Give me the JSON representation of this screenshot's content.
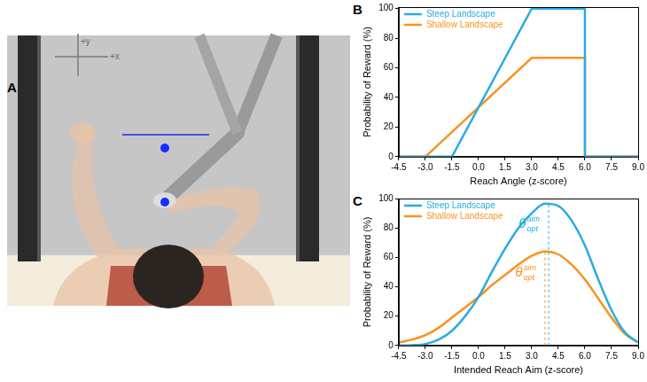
{
  "illustration": {
    "label": "A",
    "axis_labels": {
      "x": "+x",
      "y": "+y"
    }
  },
  "chart_data": [
    {
      "panel": "B",
      "type": "line",
      "x_label": "Reach Angle (z-score)",
      "y_label": "Probability of Reward (%)",
      "xlim": [
        -4.5,
        9
      ],
      "xticks": [
        -4.5,
        {
          "value": -3,
          "label": "-3.0"
        },
        -1.5,
        {
          "value": 0,
          "label": "0.0"
        },
        1.5,
        {
          "value": 3,
          "label": "3.0"
        },
        4.5,
        {
          "value": 6,
          "label": "6.0"
        },
        7.5,
        {
          "value": 9,
          "label": "9.0"
        }
      ],
      "ylim": [
        0,
        101
      ],
      "yticks": [
        0,
        20,
        40,
        60,
        80,
        100
      ],
      "grid": false,
      "legend": "upper left",
      "series": [
        {
          "name": "Steep Landscape",
          "color": "#29abe2",
          "x": [
            -4.5,
            -1.5,
            3,
            6,
            6,
            9
          ],
          "values": [
            0,
            0,
            100,
            100,
            0,
            0
          ]
        },
        {
          "name": "Shallow Landscape",
          "color": "#f7931e",
          "x": [
            -4.5,
            -3,
            3,
            6,
            6,
            9
          ],
          "values": [
            0,
            0,
            66.7,
            66.7,
            0,
            0
          ]
        }
      ]
    },
    {
      "panel": "C",
      "type": "line",
      "x_label": "Intended Reach Aim (z-score)",
      "y_label": "Probability of Reward (%)",
      "xlim": [
        -4.5,
        9
      ],
      "xticks": [
        -4.5,
        {
          "value": -3,
          "label": "-3.0"
        },
        -1.5,
        {
          "value": 0,
          "label": "0.0"
        },
        1.5,
        {
          "value": 3,
          "label": "3.0"
        },
        4.5,
        {
          "value": 6,
          "label": "6.0"
        },
        7.5,
        {
          "value": 9,
          "label": "9.0"
        }
      ],
      "ylim": [
        0,
        100
      ],
      "yticks": [
        0,
        20,
        40,
        60,
        80,
        100
      ],
      "grid": false,
      "legend": "upper left",
      "x": [
        -4.5,
        -3.75,
        -3,
        -2.25,
        -1.5,
        -0.75,
        0,
        0.75,
        1.5,
        2.25,
        3,
        3.75,
        4.5,
        5.25,
        6,
        6.75,
        7.5,
        8.25,
        9
      ],
      "series": [
        {
          "name": "Steep Landscape",
          "color": "#29abe2",
          "values": [
            0,
            0.2,
            1,
            4,
            10,
            20,
            33,
            50,
            66,
            80,
            90,
            96.5,
            95,
            85,
            68,
            45,
            24,
            9,
            2
          ]
        },
        {
          "name": "Shallow Landscape",
          "color": "#f7931e",
          "values": [
            2,
            4,
            7,
            12,
            19,
            26,
            33,
            41,
            48,
            55,
            61,
            64,
            62,
            55,
            45,
            32,
            19,
            8,
            2
          ]
        }
      ],
      "annotations": [
        {
          "x": 3.95,
          "y": 97,
          "text": "θ",
          "subscript": "opt",
          "superscript": "aim",
          "color": "#29abe2"
        },
        {
          "x": 3.75,
          "y": 64,
          "text": "θ",
          "subscript": "opt",
          "superscript": "aim",
          "color": "#f7931e"
        }
      ]
    }
  ]
}
